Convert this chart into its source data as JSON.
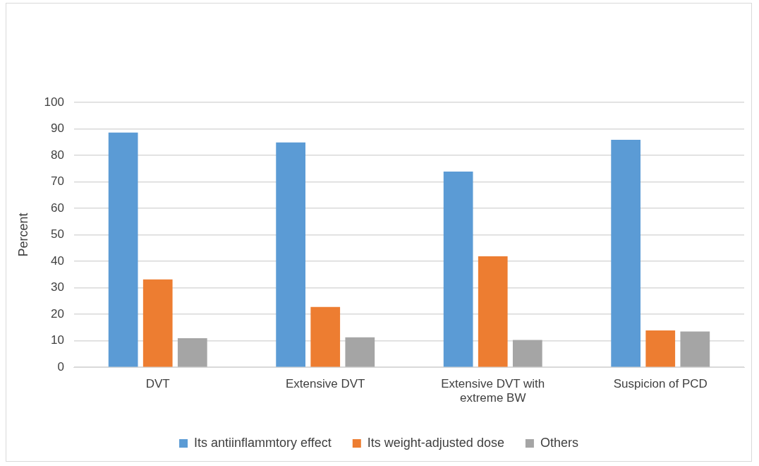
{
  "chart_data": {
    "type": "bar",
    "ylabel": "Percent",
    "categories": [
      "DVT",
      "Extensive DVT",
      "Extensive DVT with extreme BW",
      "Suspicion of PCD"
    ],
    "series": [
      {
        "name": "Its antiinflammtory effect",
        "color": "#5b9bd5",
        "values": [
          88.6,
          84.9,
          73.9,
          85.9
        ]
      },
      {
        "name": "Its weight-adjusted dose",
        "color": "#ed7d31",
        "values": [
          33.2,
          22.8,
          41.9,
          13.9
        ]
      },
      {
        "name": "Others",
        "color": "#a5a5a5",
        "values": [
          11.0,
          11.3,
          10.3,
          13.5
        ]
      }
    ],
    "ylim": [
      0,
      100
    ],
    "yticks": [
      0,
      10,
      20,
      30,
      40,
      50,
      60,
      70,
      80,
      90,
      100
    ],
    "grid": "y",
    "legend": "bottom"
  }
}
